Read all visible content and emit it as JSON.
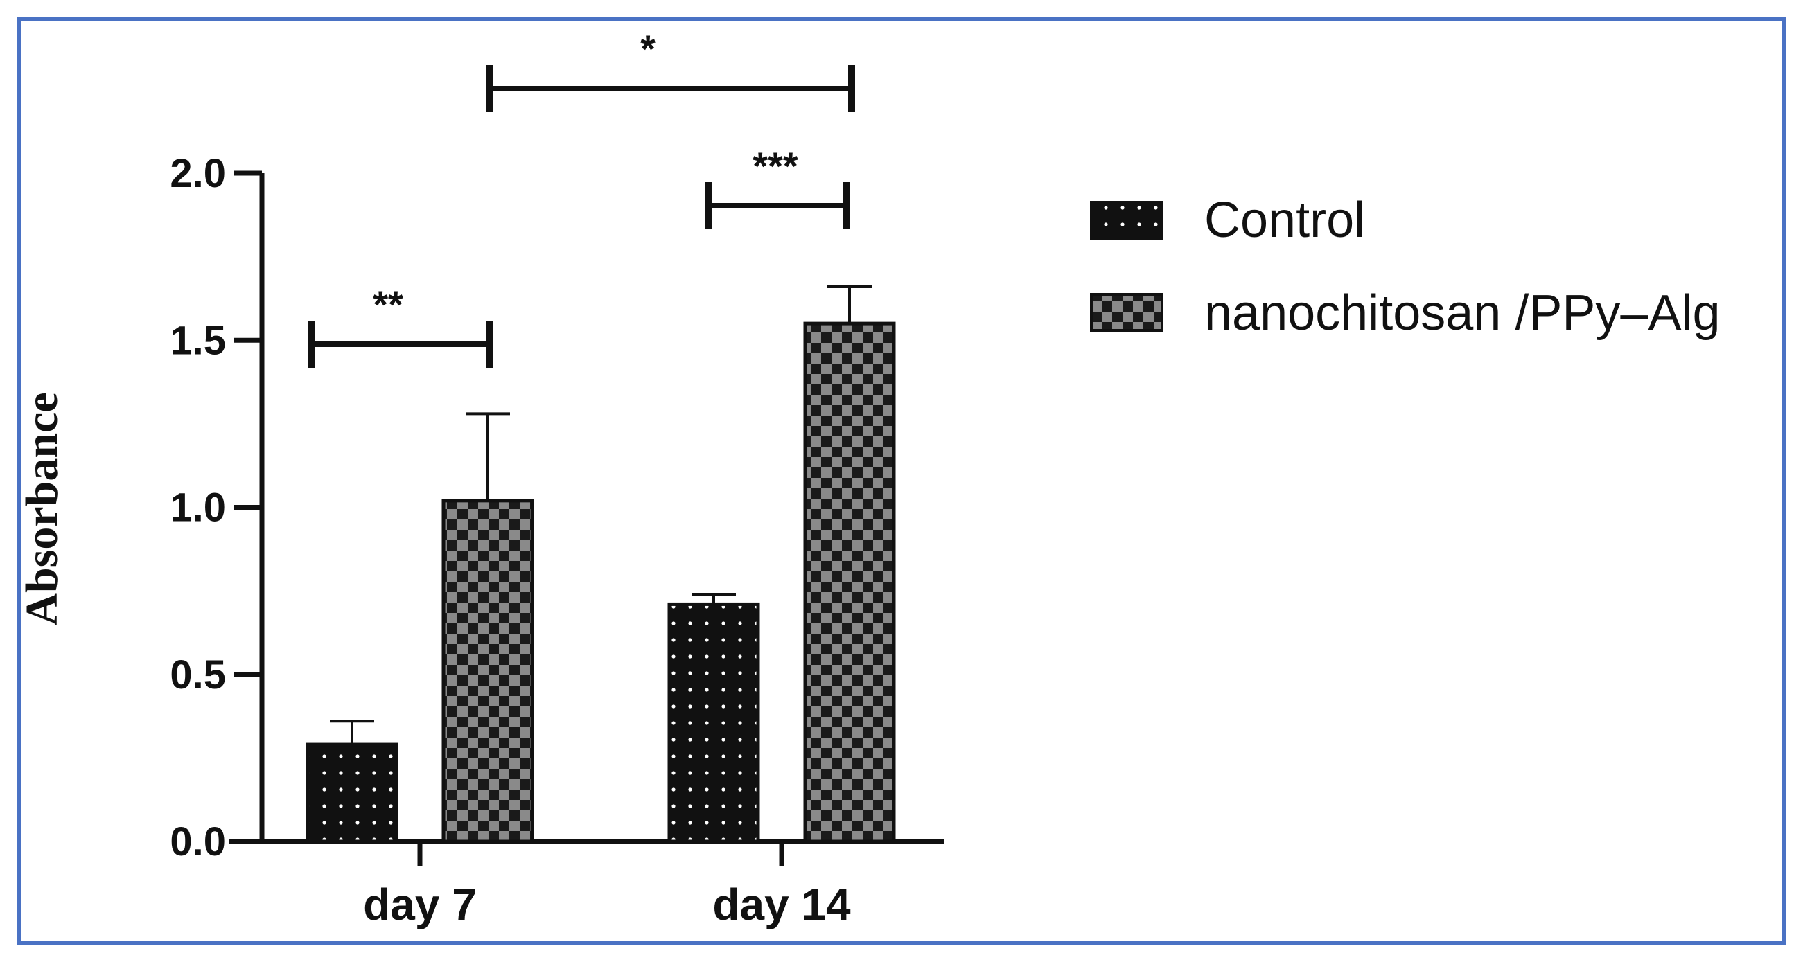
{
  "chart_data": {
    "type": "bar",
    "title": "",
    "xlabel": "",
    "ylabel": "Absorbance",
    "ylim": [
      0,
      2.0
    ],
    "yticks": [
      "0.0",
      "0.5",
      "1.0",
      "1.5",
      "2.0"
    ],
    "categories": [
      "day 7",
      "day 14"
    ],
    "series": [
      {
        "name": "Control",
        "values": [
          0.29,
          0.71
        ],
        "errors": [
          0.07,
          0.03
        ],
        "pattern": "dots"
      },
      {
        "name": "nanochitosan /PPy–Alg",
        "values": [
          1.02,
          1.55
        ],
        "errors": [
          0.26,
          0.11
        ],
        "pattern": "checker"
      }
    ],
    "significance": [
      {
        "label": "**",
        "from": "day 7 Control",
        "to": "day 7 nanochitosan /PPy–Alg"
      },
      {
        "label": "***",
        "from": "day 14 Control",
        "to": "day 14 nanochitosan /PPy–Alg"
      },
      {
        "label": "*",
        "from": "day 7 nanochitosan /PPy–Alg",
        "to": "day 14 nanochitosan /PPy–Alg"
      }
    ],
    "legend_position": "right"
  },
  "colors": {
    "frame": "#4a72c4",
    "bar": "#111111",
    "checker_light": "#8a8a8a",
    "dot": "#ffffff"
  }
}
